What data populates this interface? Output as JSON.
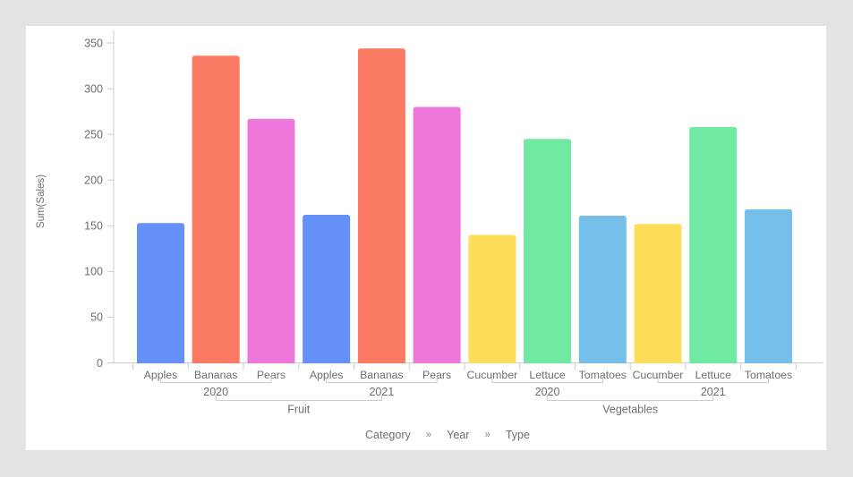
{
  "page": {
    "background_color": "#e3e3e3",
    "card_color": "#ffffff",
    "axis_line_color": "#cccccc",
    "label_color": "#6e6e6e"
  },
  "chart_data": {
    "type": "bar",
    "title": "",
    "ylabel": "Sum(Sales)",
    "xlabel": "",
    "ylim": [
      0,
      350
    ],
    "yticks": [
      0,
      50,
      100,
      150,
      200,
      250,
      300,
      350
    ],
    "grid": false,
    "legend": "none",
    "hierarchy_levels": [
      "Category",
      "Year",
      "Type"
    ],
    "groups": [
      {
        "category": "Fruit",
        "years": [
          {
            "year": "2020",
            "items": [
              {
                "type": "Apples",
                "value": 153,
                "color": "#6590F8"
              },
              {
                "type": "Bananas",
                "value": 336,
                "color": "#FA7A63"
              },
              {
                "type": "Pears",
                "value": 267,
                "color": "#EE77DC"
              }
            ]
          },
          {
            "year": "2021",
            "items": [
              {
                "type": "Apples",
                "value": 162,
                "color": "#6590F8"
              },
              {
                "type": "Bananas",
                "value": 344,
                "color": "#FA7A63"
              },
              {
                "type": "Pears",
                "value": 280,
                "color": "#EE77DC"
              }
            ]
          }
        ]
      },
      {
        "category": "Vegetables",
        "years": [
          {
            "year": "2020",
            "items": [
              {
                "type": "Cucumber",
                "value": 140,
                "color": "#FEDD5B"
              },
              {
                "type": "Lettuce",
                "value": 245,
                "color": "#70E9A3"
              },
              {
                "type": "Tomatoes",
                "value": 161,
                "color": "#74C0EA"
              }
            ]
          },
          {
            "year": "2021",
            "items": [
              {
                "type": "Cucumber",
                "value": 152,
                "color": "#FEDD5B"
              },
              {
                "type": "Lettuce",
                "value": 258,
                "color": "#70E9A3"
              },
              {
                "type": "Tomatoes",
                "value": 168,
                "color": "#74C0EA"
              }
            ]
          }
        ]
      }
    ],
    "breadcrumb": {
      "items": [
        "Category",
        "Year",
        "Type"
      ],
      "separator": "»"
    }
  }
}
